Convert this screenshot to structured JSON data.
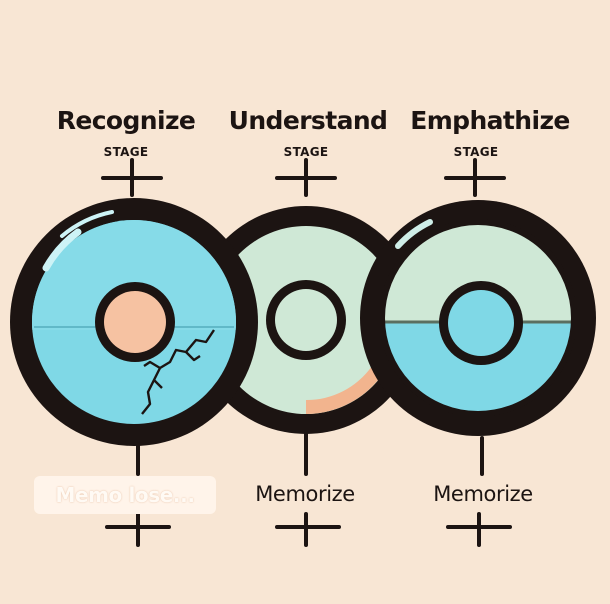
{
  "stages": [
    {
      "title": "Recognize",
      "subtitle": "STAGE",
      "bottom_label": "Memo lose...",
      "bottom_label_faded": true,
      "ring_fill": "#7fd8e6",
      "center_color": "#f6c2a2",
      "cracked": true
    },
    {
      "title": "Understand",
      "subtitle": "STAGE",
      "bottom_label": "Memorize",
      "bottom_label_faded": false,
      "ring_fill": "#cfe8d6",
      "center_color": "#cfe8d6",
      "cracked": false
    },
    {
      "title": "Emphathize",
      "subtitle": "STAGE",
      "bottom_label": "Memorize",
      "bottom_label_faded": false,
      "ring_fill_top": "#cfe8d6",
      "ring_fill_bottom": "#7fd8e6",
      "center_color": "#7fd8e6",
      "cracked": false
    }
  ],
  "colors": {
    "background": "#f8e6d4",
    "outline": "#1c1412",
    "cyan": "#7fd8e6",
    "mint": "#cfe8d6",
    "peach": "#f6c2a2"
  },
  "icons": [
    "plus-connector-icon",
    "crack-icon"
  ]
}
